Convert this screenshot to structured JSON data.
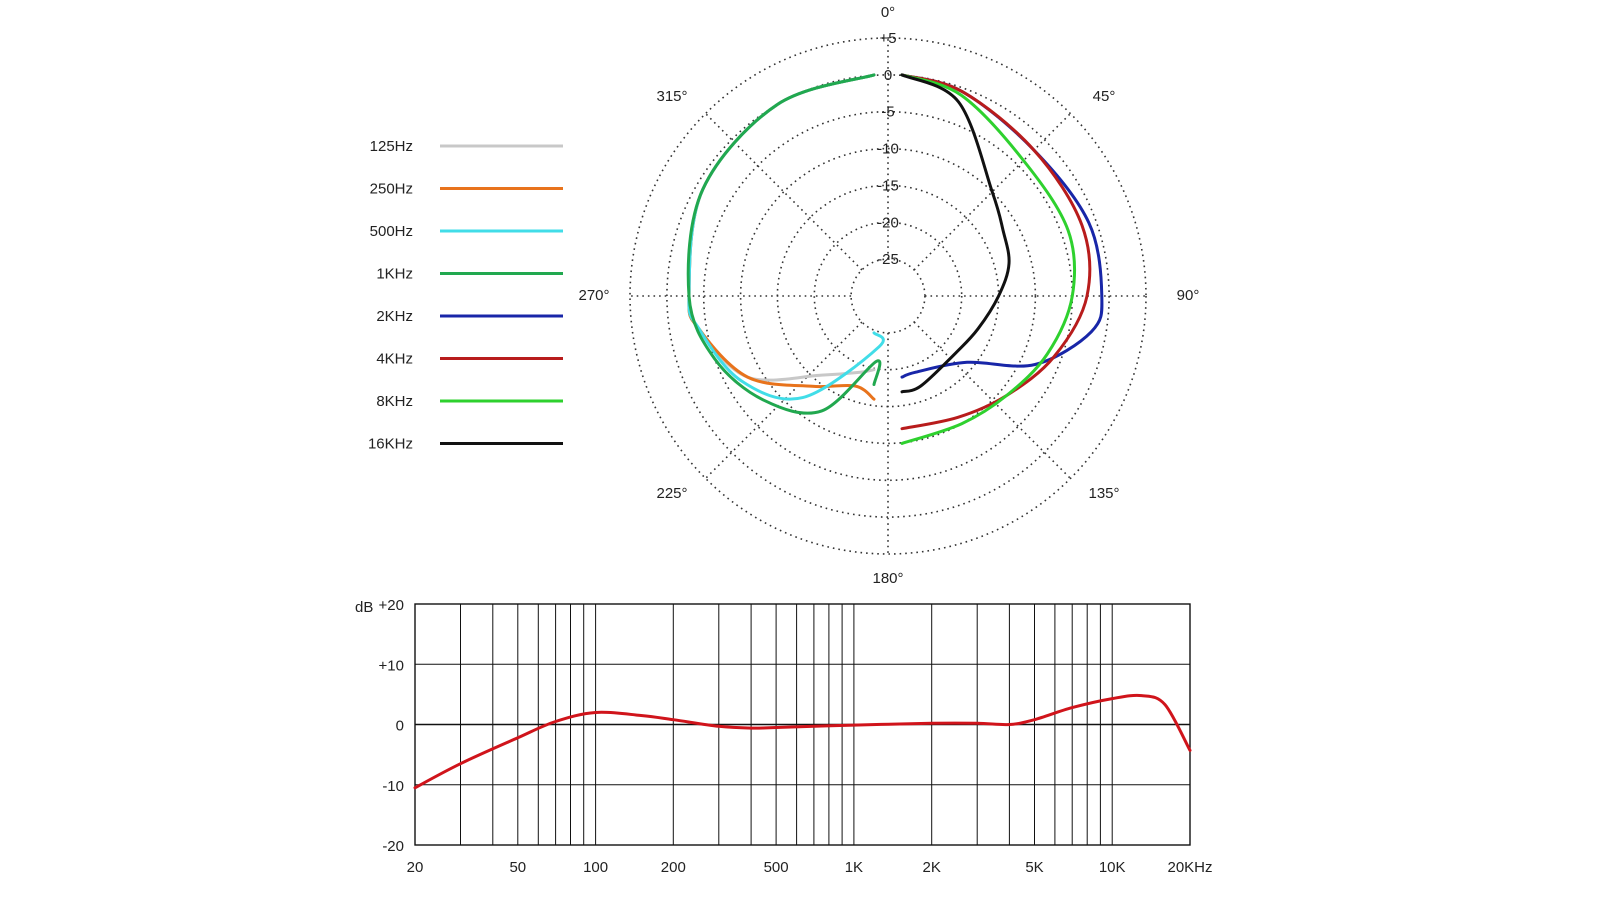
{
  "chart_data": [
    {
      "type": "polar",
      "angle_labels": [
        "0°",
        "45°",
        "90°",
        "135°",
        "180°",
        "225°",
        "270°",
        "315°"
      ],
      "radial_labels": [
        "+5",
        "0",
        "-5",
        "-10",
        "-15",
        "-20",
        "-25"
      ],
      "radial_values": [
        5,
        0,
        -5,
        -10,
        -15,
        -20,
        -25
      ],
      "rlim": [
        -30,
        5
      ],
      "legend_position": "left",
      "series": [
        {
          "name": "125Hz",
          "color": "#c8c8c8",
          "points": [
            [
              180,
              -20
            ],
            [
              200,
              -19
            ],
            [
              220,
              -16
            ],
            [
              240,
              -8
            ],
            [
              260,
              -4
            ],
            [
              270,
              -3
            ],
            [
              300,
              -1
            ],
            [
              330,
              0
            ],
            [
              360,
              0
            ]
          ]
        },
        {
          "name": "250Hz",
          "color": "#e8731c",
          "points": [
            [
              180,
              -16
            ],
            [
              200,
              -17
            ],
            [
              220,
              -14
            ],
            [
              240,
              -8
            ],
            [
              260,
              -4
            ],
            [
              270,
              -3
            ],
            [
              300,
              -1
            ],
            [
              330,
              0
            ],
            [
              360,
              0
            ]
          ]
        },
        {
          "name": "500Hz",
          "color": "#41dde8",
          "points": [
            [
              180,
              -25
            ],
            [
              190,
              -23
            ],
            [
              220,
              -12
            ],
            [
              240,
              -7
            ],
            [
              260,
              -4
            ],
            [
              270,
              -3
            ],
            [
              300,
              -1
            ],
            [
              330,
              0
            ],
            [
              360,
              0
            ]
          ]
        },
        {
          "name": "1KHz",
          "color": "#21a84f",
          "points": [
            [
              180,
              -18
            ],
            [
              190,
              -21
            ],
            [
              210,
              -12
            ],
            [
              230,
              -8
            ],
            [
              250,
              -5
            ],
            [
              270,
              -3
            ],
            [
              300,
              -1
            ],
            [
              330,
              0
            ],
            [
              360,
              0
            ]
          ]
        },
        {
          "name": "2KHz",
          "color": "#1826a8",
          "points": [
            [
              0,
              0
            ],
            [
              20,
              -0.5
            ],
            [
              45,
              -2
            ],
            [
              70,
              -1
            ],
            [
              90,
              -1
            ],
            [
              100,
              -2
            ],
            [
              115,
              -8
            ],
            [
              130,
              -16
            ],
            [
              160,
              -19
            ],
            [
              180,
              -19
            ]
          ]
        },
        {
          "name": "4KHz",
          "color": "#b81c1c",
          "points": [
            [
              0,
              0
            ],
            [
              20,
              -0.5
            ],
            [
              45,
              -2
            ],
            [
              70,
              -2
            ],
            [
              90,
              -3
            ],
            [
              110,
              -6
            ],
            [
              130,
              -9
            ],
            [
              150,
              -11
            ],
            [
              180,
              -12
            ]
          ]
        },
        {
          "name": "8KHz",
          "color": "#2ed12e",
          "points": [
            [
              0,
              0
            ],
            [
              20,
              -1
            ],
            [
              45,
              -4
            ],
            [
              70,
              -4
            ],
            [
              90,
              -5
            ],
            [
              110,
              -7
            ],
            [
              130,
              -9
            ],
            [
              150,
              -10
            ],
            [
              180,
              -10
            ]
          ]
        },
        {
          "name": "16KHz",
          "color": "#111111",
          "points": [
            [
              0,
              0
            ],
            [
              20,
              -2
            ],
            [
              45,
              -10
            ],
            [
              60,
              -12
            ],
            [
              75,
              -13
            ],
            [
              90,
              -15
            ],
            [
              110,
              -17
            ],
            [
              130,
              -18
            ],
            [
              160,
              -17
            ],
            [
              180,
              -17
            ]
          ]
        }
      ]
    },
    {
      "type": "line",
      "ylabel": "dB",
      "xscale": "log",
      "xlim": [
        20,
        20000
      ],
      "ylim": [
        -20,
        20
      ],
      "grid": true,
      "x_tick_values": [
        20,
        50,
        100,
        200,
        500,
        1000,
        2000,
        5000,
        10000,
        20000
      ],
      "x_tick_labels": [
        "20",
        "50",
        "100",
        "200",
        "500",
        "1K",
        "2K",
        "5K",
        "10K",
        "20KHz"
      ],
      "y_tick_values": [
        20,
        10,
        0,
        -10,
        -20
      ],
      "y_tick_labels": [
        "+20",
        "+10",
        "0",
        "-10",
        "-20"
      ],
      "series": [
        {
          "name": "",
          "color": "#d0141b",
          "x": [
            20,
            30,
            50,
            70,
            100,
            150,
            200,
            300,
            400,
            500,
            1000,
            2000,
            3000,
            4000,
            5000,
            7000,
            10000,
            13000,
            16000,
            20000
          ],
          "y": [
            -10.5,
            -6.5,
            -2.2,
            0.5,
            2,
            1.5,
            0.8,
            -0.3,
            -0.6,
            -0.5,
            -0.1,
            0.2,
            0.2,
            0,
            0.8,
            2.8,
            4.3,
            4.8,
            3.3,
            -4.3
          ]
        }
      ]
    }
  ]
}
